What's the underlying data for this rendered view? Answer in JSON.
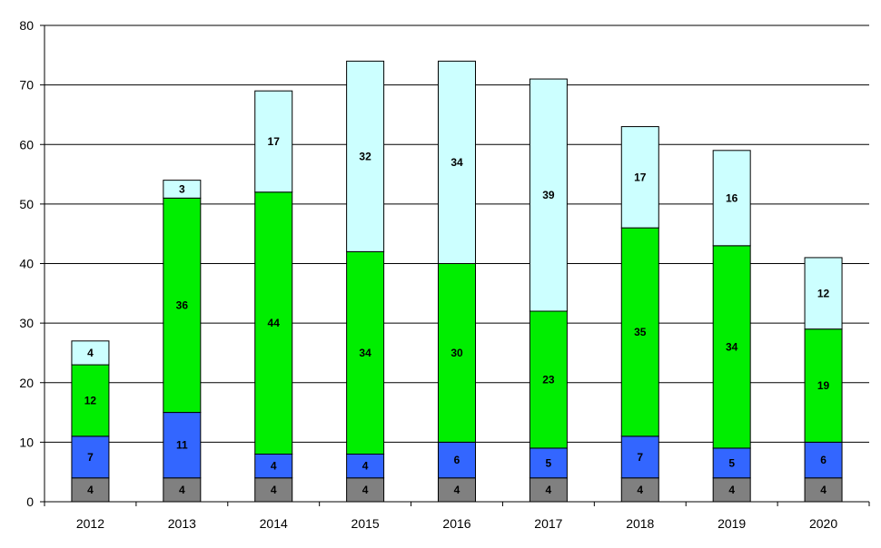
{
  "chart_data": {
    "type": "bar",
    "stacked": true,
    "title": "",
    "xlabel": "",
    "ylabel": "",
    "ylim": [
      0,
      80
    ],
    "yticks": [
      "0",
      "10",
      "20",
      "30",
      "40",
      "50",
      "60",
      "70",
      "80"
    ],
    "grid": "horizontal",
    "legend": "none",
    "categories": [
      "2012",
      "2013",
      "2014",
      "2015",
      "2016",
      "2017",
      "2018",
      "2019",
      "2020"
    ],
    "series": [
      {
        "color": "#808080",
        "values": [
          4,
          4,
          4,
          4,
          4,
          4,
          4,
          4,
          4
        ]
      },
      {
        "color": "#3366ff",
        "values": [
          7,
          11,
          4,
          4,
          6,
          5,
          7,
          5,
          6
        ]
      },
      {
        "color": "#00ee00",
        "values": [
          12,
          36,
          44,
          34,
          30,
          23,
          35,
          34,
          19
        ]
      },
      {
        "color": "#ccffff",
        "values": [
          4,
          3,
          17,
          32,
          34,
          39,
          17,
          16,
          12
        ]
      }
    ]
  }
}
